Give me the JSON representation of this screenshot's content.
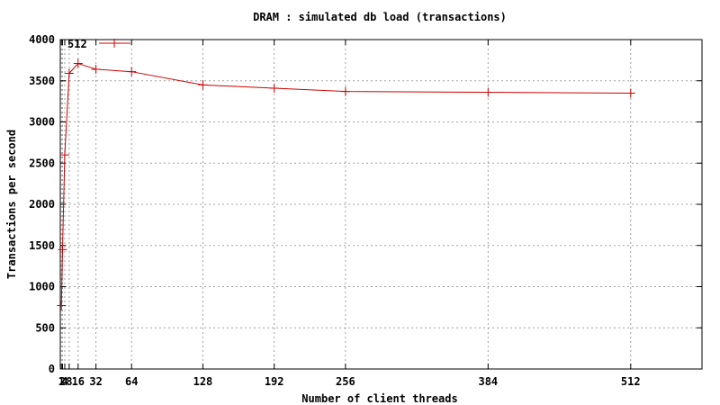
{
  "chart_data": {
    "type": "line",
    "title": "DRAM : simulated db load (transactions)",
    "xlabel": "Number of client threads",
    "ylabel": "Transactions per second",
    "xlim": [
      0,
      576
    ],
    "ylim": [
      0,
      4000
    ],
    "x_ticks": [
      1,
      2,
      4,
      8,
      16,
      32,
      64,
      128,
      192,
      256,
      384,
      512
    ],
    "x_tick_labels": [
      "1",
      "2",
      "4",
      "8",
      "16",
      "32",
      "64",
      "128",
      "192",
      "256",
      "384",
      "512"
    ],
    "y_ticks": [
      0,
      500,
      1000,
      1500,
      2000,
      2500,
      3000,
      3500,
      4000
    ],
    "y_tick_labels": [
      "0",
      "500",
      "1000",
      "1500",
      "2000",
      "2500",
      "3000",
      "3500",
      "4000"
    ],
    "grid": true,
    "legend_position": "top-left",
    "series": [
      {
        "name": "512",
        "color": "#cc0000",
        "marker": "plus",
        "points": [
          [
            1,
            770
          ],
          [
            2,
            1450
          ],
          [
            4,
            2600
          ],
          [
            8,
            3590
          ],
          [
            16,
            3710
          ],
          [
            32,
            3640
          ],
          [
            64,
            3610
          ],
          [
            128,
            3450
          ],
          [
            192,
            3410
          ],
          [
            256,
            3370
          ],
          [
            384,
            3360
          ],
          [
            512,
            3350
          ]
        ]
      }
    ]
  }
}
